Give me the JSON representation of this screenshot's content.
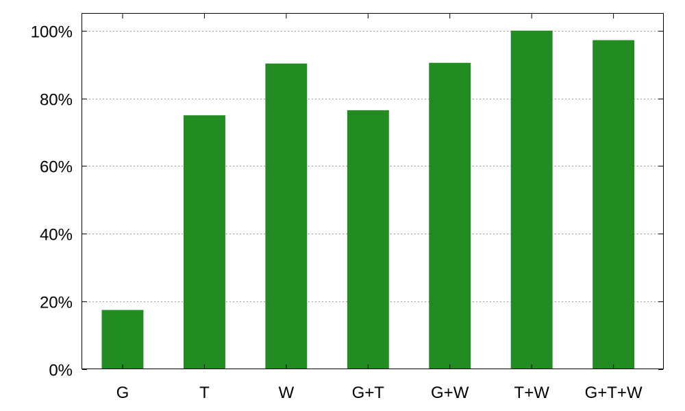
{
  "chart_data": {
    "type": "bar",
    "categories": [
      "G",
      "T",
      "W",
      "G+T",
      "G+W",
      "T+W",
      "G+T+W"
    ],
    "values": [
      17.5,
      75,
      90.3,
      76.5,
      90.5,
      100,
      97.2
    ],
    "value_unit": "%",
    "ylim": [
      0,
      105
    ],
    "yticks": [
      0,
      20,
      40,
      60,
      80,
      100
    ],
    "ytick_labels": [
      "0%",
      "20%",
      "40%",
      "60%",
      "80%",
      "100%"
    ],
    "title": "",
    "xlabel": "",
    "ylabel": "",
    "grid": "horizontal-dotted",
    "legend": "none",
    "bar_color": "#228b22"
  }
}
